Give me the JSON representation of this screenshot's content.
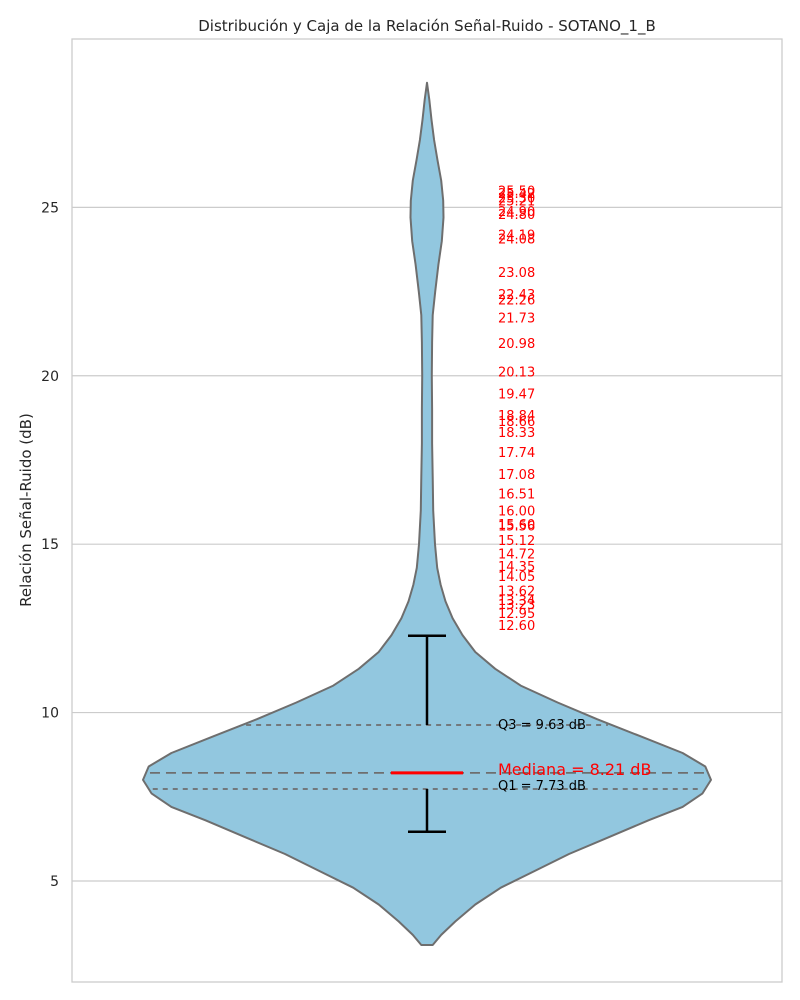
{
  "chart_data": {
    "type": "violin",
    "title": "Distribución y Caja de la Relación Señal-Ruido - SOTANO_1_B",
    "ylabel": "Relación Señal-Ruido (dB)",
    "xlabel": "",
    "ylim": [
      2.0,
      30.0
    ],
    "yticks": [
      5,
      10,
      15,
      20,
      25
    ],
    "grid": true,
    "violin": {
      "color": "#92c7df",
      "edge_color": "#6e6e6e",
      "min": 3.1,
      "max": 28.7,
      "profile": [
        [
          3.1,
          0.02
        ],
        [
          3.4,
          0.05
        ],
        [
          3.8,
          0.1
        ],
        [
          4.3,
          0.17
        ],
        [
          4.8,
          0.26
        ],
        [
          5.3,
          0.38
        ],
        [
          5.8,
          0.5
        ],
        [
          6.3,
          0.64
        ],
        [
          6.8,
          0.78
        ],
        [
          7.2,
          0.9
        ],
        [
          7.6,
          0.97
        ],
        [
          8.0,
          1.0
        ],
        [
          8.4,
          0.98
        ],
        [
          8.8,
          0.9
        ],
        [
          9.3,
          0.75
        ],
        [
          9.8,
          0.6
        ],
        [
          10.3,
          0.46
        ],
        [
          10.8,
          0.33
        ],
        [
          11.3,
          0.24
        ],
        [
          11.8,
          0.17
        ],
        [
          12.3,
          0.125
        ],
        [
          12.8,
          0.09
        ],
        [
          13.3,
          0.065
        ],
        [
          13.8,
          0.048
        ],
        [
          14.3,
          0.036
        ],
        [
          15.0,
          0.028
        ],
        [
          16.0,
          0.022
        ],
        [
          17.0,
          0.02
        ],
        [
          18.0,
          0.018
        ],
        [
          19.0,
          0.018
        ],
        [
          20.0,
          0.017
        ],
        [
          21.0,
          0.018
        ],
        [
          21.8,
          0.02
        ],
        [
          22.5,
          0.029
        ],
        [
          23.3,
          0.04
        ],
        [
          24.0,
          0.052
        ],
        [
          24.7,
          0.058
        ],
        [
          25.2,
          0.057
        ],
        [
          25.8,
          0.05
        ],
        [
          26.4,
          0.037
        ],
        [
          27.0,
          0.025
        ],
        [
          27.6,
          0.016
        ],
        [
          28.2,
          0.008
        ],
        [
          28.7,
          0.0
        ]
      ]
    },
    "box": {
      "whisker_low": 6.46,
      "q1": 7.73,
      "median": 8.21,
      "q3": 9.63,
      "whisker_high": 12.28
    },
    "annotations": {
      "median_label": "Mediana = 8.21 dB",
      "q1_label": "Q1 = 7.73 dB",
      "q3_label": "Q3 = 9.63 dB",
      "median_color": "#ff0000",
      "quartile_color": "#000000"
    },
    "outliers": [
      {
        "value": 12.6,
        "label": "12.60"
      },
      {
        "value": 12.95,
        "label": "12.95"
      },
      {
        "value": 13.23,
        "label": "13.23"
      },
      {
        "value": 13.34,
        "label": "13.34"
      },
      {
        "value": 13.62,
        "label": "13.62"
      },
      {
        "value": 14.05,
        "label": "14.05"
      },
      {
        "value": 14.35,
        "label": "14.35"
      },
      {
        "value": 14.72,
        "label": "14.72"
      },
      {
        "value": 15.12,
        "label": "15.12"
      },
      {
        "value": 15.56,
        "label": "15.56"
      },
      {
        "value": 15.6,
        "label": "15.60"
      },
      {
        "value": 16.0,
        "label": "16.00"
      },
      {
        "value": 16.51,
        "label": "16.51"
      },
      {
        "value": 17.08,
        "label": "17.08"
      },
      {
        "value": 17.74,
        "label": "17.74"
      },
      {
        "value": 18.33,
        "label": "18.33"
      },
      {
        "value": 18.66,
        "label": "18.66"
      },
      {
        "value": 18.84,
        "label": "18.84"
      },
      {
        "value": 19.47,
        "label": "19.47"
      },
      {
        "value": 20.13,
        "label": "20.13"
      },
      {
        "value": 20.98,
        "label": "20.98"
      },
      {
        "value": 21.73,
        "label": "21.73"
      },
      {
        "value": 22.26,
        "label": "22.26"
      },
      {
        "value": 22.43,
        "label": "22.43"
      },
      {
        "value": 23.08,
        "label": "23.08"
      },
      {
        "value": 24.08,
        "label": "24.08"
      },
      {
        "value": 24.19,
        "label": "24.19"
      },
      {
        "value": 24.8,
        "label": "24.80"
      },
      {
        "value": 24.9,
        "label": "24.90"
      },
      {
        "value": 25.21,
        "label": "25.21"
      },
      {
        "value": 25.3,
        "label": "25.30"
      },
      {
        "value": 25.42,
        "label": "25.42"
      },
      {
        "value": 25.5,
        "label": "25.50"
      }
    ],
    "outlier_color": "#ff0000"
  }
}
